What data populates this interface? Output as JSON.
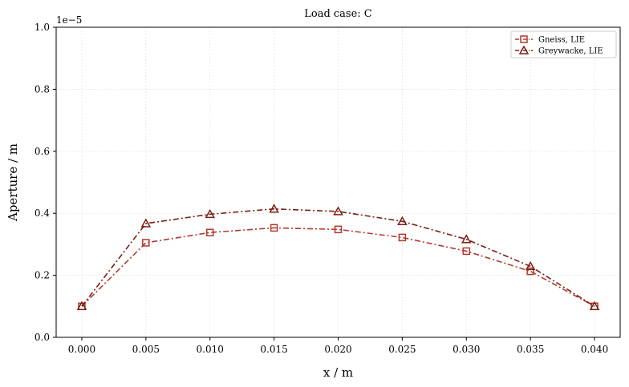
{
  "chart_data": {
    "type": "line",
    "title": "Load case: C",
    "xlabel": "x / m",
    "ylabel": "Aperture / m",
    "y_offset_label": "1e−5",
    "x_ticks": [
      "0.000",
      "0.005",
      "0.010",
      "0.015",
      "0.020",
      "0.025",
      "0.030",
      "0.035",
      "0.040"
    ],
    "y_ticks": [
      "0.0",
      "0.2",
      "0.4",
      "0.6",
      "0.8",
      "1.0"
    ],
    "x_tick_values": [
      0,
      0.005,
      0.01,
      0.015,
      0.02,
      0.025,
      0.03,
      0.035,
      0.04
    ],
    "y_tick_values": [
      0,
      0.2,
      0.4,
      0.6,
      0.8,
      1.0
    ],
    "xlim": [
      -0.002,
      0.042
    ],
    "ylim": [
      0,
      1.0
    ],
    "y_scale_note": "values in units of 1e-5 m",
    "grid": true,
    "legend_position": "top-right",
    "series": [
      {
        "name": "Gneiss, LIE",
        "marker": "square",
        "color": "#b03a2e",
        "x": [
          0,
          0.005,
          0.01,
          0.015,
          0.02,
          0.025,
          0.03,
          0.035,
          0.04
        ],
        "values": [
          0.1,
          0.305,
          0.338,
          0.353,
          0.348,
          0.322,
          0.278,
          0.213,
          0.1
        ]
      },
      {
        "name": "Greywacke, LIE",
        "marker": "triangle",
        "color": "#7b1f14",
        "x": [
          0,
          0.005,
          0.01,
          0.015,
          0.02,
          0.025,
          0.03,
          0.035,
          0.04
        ],
        "values": [
          0.1,
          0.367,
          0.397,
          0.414,
          0.406,
          0.374,
          0.316,
          0.229,
          0.1
        ]
      }
    ]
  }
}
